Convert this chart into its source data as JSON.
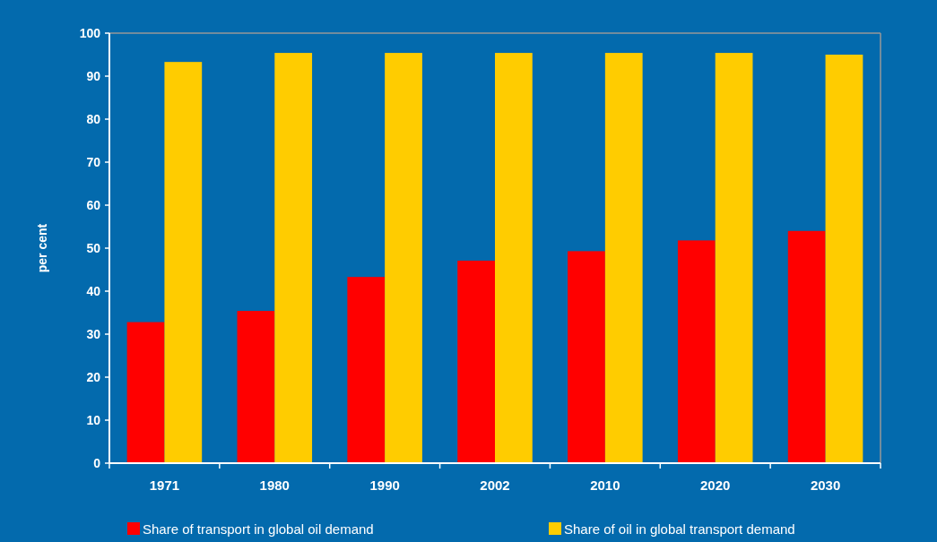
{
  "chart_data": {
    "type": "bar",
    "ylabel": "per cent",
    "categories": [
      "1971",
      "1980",
      "1990",
      "2002",
      "2010",
      "2020",
      "2030"
    ],
    "series": [
      {
        "name": "Share of transport in global oil demand",
        "color": "#ff0000",
        "values": [
          32.8,
          35.4,
          43.3,
          47.1,
          49.3,
          51.8,
          54.0
        ]
      },
      {
        "name": "Share of oil in global transport demand",
        "color": "#ffcc00",
        "values": [
          93.3,
          95.4,
          95.4,
          95.4,
          95.4,
          95.4,
          95.0
        ]
      }
    ],
    "ylim": [
      0,
      100
    ],
    "yticks": [
      0,
      10,
      20,
      30,
      40,
      50,
      60,
      70,
      80,
      90,
      100
    ],
    "legend": "bottom"
  }
}
